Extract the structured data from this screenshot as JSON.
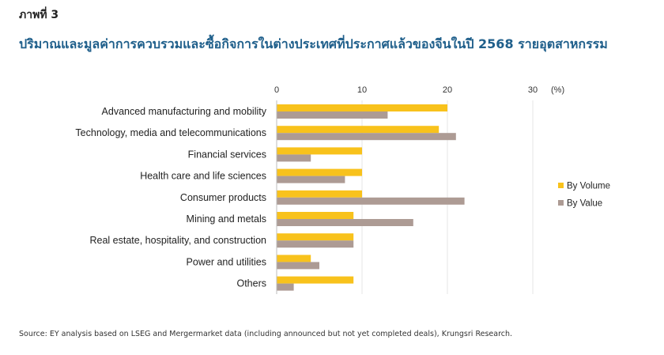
{
  "figure_label": "ภาพที่ 3",
  "title": "ปริมาณและมูลค่าการควบรวมและซื้อกิจการในต่างประเทศที่ประกาศแล้วของจีนในปี 2568 รายอุตสาหกรรม",
  "source": "Source: EY analysis based on LSEG and Mergermarket data (including announced but not yet completed deals), Krungsri Research.",
  "chart_data": {
    "type": "bar",
    "orientation": "horizontal",
    "categories": [
      "Advanced manufacturing and mobility",
      "Technology, media and telecommunications",
      "Financial services",
      "Health care and life sciences",
      "Consumer products",
      "Mining and metals",
      "Real estate, hospitality, and construction",
      "Power and utilities",
      "Others"
    ],
    "series": [
      {
        "name": "By Volume",
        "color": "#f8c21c",
        "values": [
          20,
          19,
          10,
          10,
          10,
          9,
          9,
          4,
          9
        ]
      },
      {
        "name": "By Value",
        "color": "#ad9b94",
        "values": [
          13,
          21,
          4,
          8,
          22,
          16,
          9,
          5,
          2
        ]
      }
    ],
    "x_unit": "(%)",
    "xlim": [
      0,
      30
    ],
    "xticks": [
      "0",
      "10",
      "20",
      "30"
    ],
    "grid": true,
    "axis_position": "top",
    "legend_position": "right"
  }
}
